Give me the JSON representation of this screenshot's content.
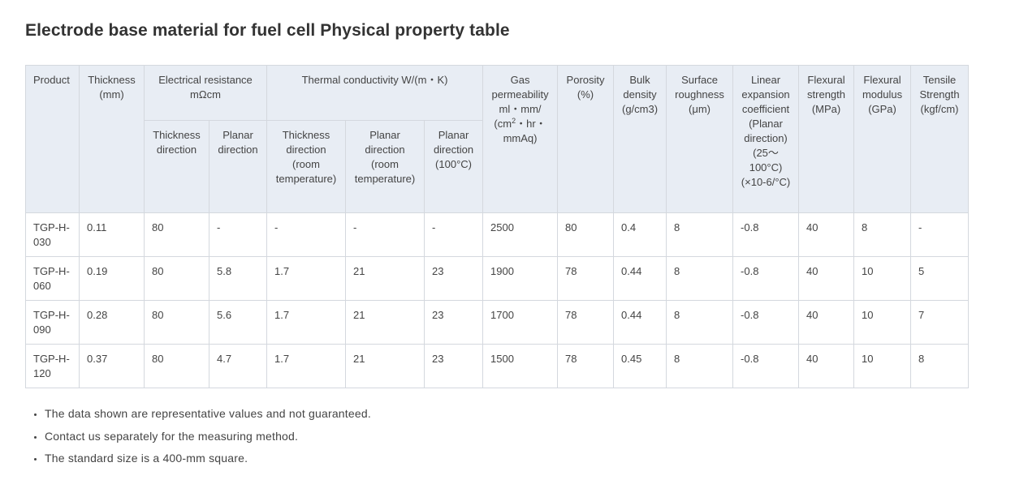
{
  "page": {
    "title": "Electrode base material for fuel cell Physical property table"
  },
  "table": {
    "headers": {
      "product": "Product",
      "thickness": "Thickness (mm)",
      "electrical_resistance": "Electrical resistance mΩcm",
      "thermal_conductivity": "Thermal conductivity W/(m・K)",
      "gas_permeability_pre": "Gas permeability ml・mm/ (cm",
      "gas_permeability_sup": "2",
      "gas_permeability_post": "・hr・mmAq)",
      "porosity": "Porosity (%)",
      "bulk_density": "Bulk density (g/cm3)",
      "surface_roughness": "Surface roughness (μm)",
      "linear_expansion": "Linear expansion coefficient (Planar direction) (25～100°C) (×10-6/°C)",
      "flexural_strength": "Flexural strength (MPa)",
      "flexural_modulus": "Flexural modulus (GPa)",
      "tensile_strength": "Tensile Strength (kgf/cm)",
      "er_thickness_direction": "Thickness direction",
      "er_planar_direction": "Planar direction",
      "tc_thickness_room": "Thickness direction (room temperature)",
      "tc_planar_room": "Planar direction (room temperature)",
      "tc_planar_100": "Planar direction (100°C)"
    },
    "rows": [
      [
        "TGP-H-030",
        "0.11",
        "80",
        "-",
        "-",
        "-",
        "-",
        "2500",
        "80",
        "0.4",
        "8",
        "-0.8",
        "40",
        "8",
        "-"
      ],
      [
        "TGP-H-060",
        "0.19",
        "80",
        "5.8",
        "1.7",
        "21",
        "23",
        "1900",
        "78",
        "0.44",
        "8",
        "-0.8",
        "40",
        "10",
        "5"
      ],
      [
        "TGP-H-090",
        "0.28",
        "80",
        "5.6",
        "1.7",
        "21",
        "23",
        "1700",
        "78",
        "0.44",
        "8",
        "-0.8",
        "40",
        "10",
        "7"
      ],
      [
        "TGP-H-120",
        "0.37",
        "80",
        "4.7",
        "1.7",
        "21",
        "23",
        "1500",
        "78",
        "0.45",
        "8",
        "-0.8",
        "40",
        "10",
        "8"
      ]
    ]
  },
  "notes": [
    "The data shown are representative values and not guaranteed.",
    "Contact us separately for the measuring method.",
    "The standard size is a 400-mm square."
  ]
}
